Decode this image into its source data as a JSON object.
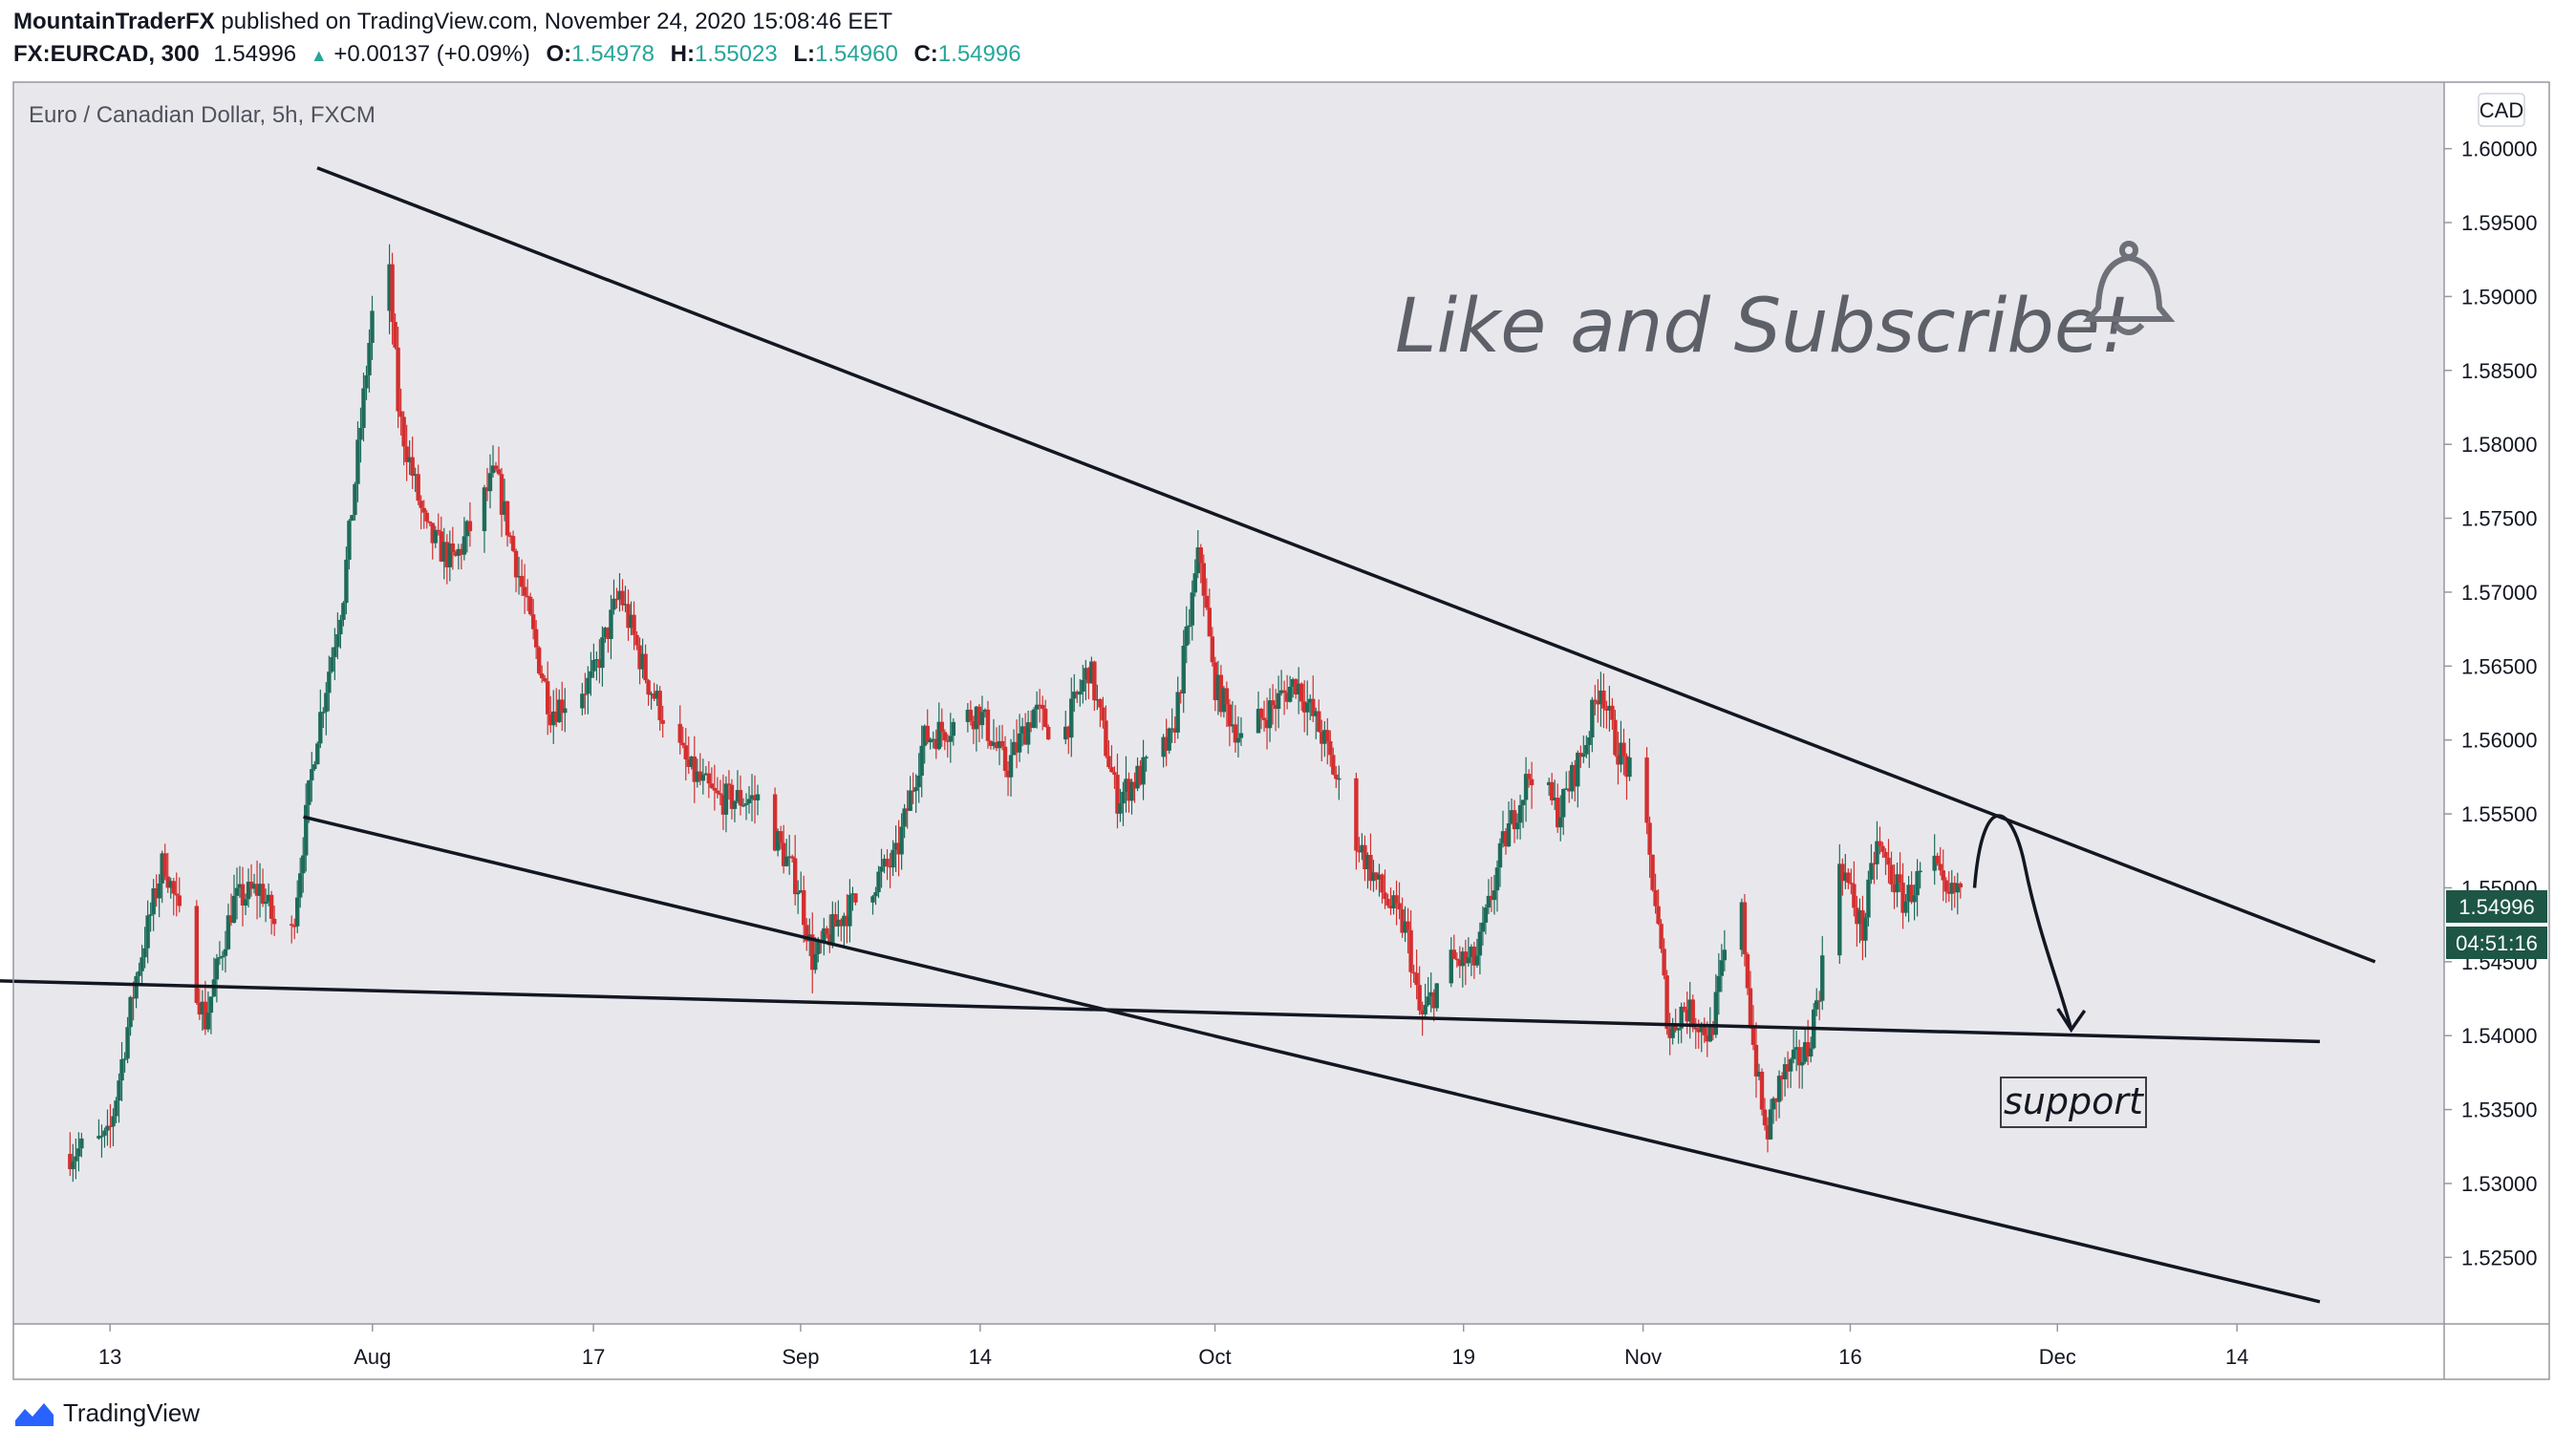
{
  "header": {
    "publisher": "MountainTraderFX",
    "published_text": "published on TradingView.com, November 24, 2020 15:08:46 EET",
    "symbol": "FX:EURCAD, 300",
    "last": "1.54996",
    "change_arrow": "▲",
    "change": "+0.00137 (+0.09%)",
    "ohlc": [
      {
        "label": "O:",
        "value": "1.54978"
      },
      {
        "label": "H:",
        "value": "1.55023"
      },
      {
        "label": "L:",
        "value": "1.54960"
      },
      {
        "label": "C:",
        "value": "1.54996"
      }
    ]
  },
  "chart_data": {
    "type": "candlestick",
    "title": "Euro / Canadian Dollar, 5h, FXCM",
    "currency": "CAD",
    "ylim": [
      1.5205,
      1.6045
    ],
    "y_ticks": [
      "1.52500",
      "1.53000",
      "1.53500",
      "1.54000",
      "1.54500",
      "1.55000",
      "1.55500",
      "1.56000",
      "1.56500",
      "1.57000",
      "1.57500",
      "1.58000",
      "1.58500",
      "1.59000",
      "1.59500",
      "1.60000"
    ],
    "x_ticks": [
      "13",
      "Aug",
      "17",
      "Sep",
      "14",
      "Oct",
      "19",
      "Nov",
      "16",
      "Dec",
      "14"
    ],
    "x_tick_dates": [
      "2020-07-13",
      "2020-08-01",
      "2020-08-17",
      "2020-09-01",
      "2020-09-14",
      "2020-10-01",
      "2020-10-19",
      "2020-11-01",
      "2020-11-16",
      "2020-12-01",
      "2020-12-14"
    ],
    "price_path": [
      [
        "2020-07-10",
        1.532
      ],
      [
        "2020-07-13",
        1.533
      ],
      [
        "2020-07-15",
        1.544
      ],
      [
        "2020-07-17",
        1.552
      ],
      [
        "2020-07-20",
        1.541
      ],
      [
        "2020-07-22",
        1.549
      ],
      [
        "2020-07-24",
        1.55
      ],
      [
        "2020-07-26",
        1.545
      ],
      [
        "2020-07-28",
        1.56
      ],
      [
        "2020-07-30",
        1.57
      ],
      [
        "2020-08-01",
        1.588
      ],
      [
        "2020-08-02",
        1.596
      ],
      [
        "2020-08-03",
        1.582
      ],
      [
        "2020-08-05",
        1.574
      ],
      [
        "2020-08-07",
        1.572
      ],
      [
        "2020-08-10",
        1.578
      ],
      [
        "2020-08-12",
        1.57
      ],
      [
        "2020-08-14",
        1.562
      ],
      [
        "2020-08-17",
        1.564
      ],
      [
        "2020-08-19",
        1.57
      ],
      [
        "2020-08-21",
        1.564
      ],
      [
        "2020-08-24",
        1.558
      ],
      [
        "2020-08-26",
        1.556
      ],
      [
        "2020-08-29",
        1.556
      ],
      [
        "2020-09-01",
        1.55
      ],
      [
        "2020-09-02",
        1.545
      ],
      [
        "2020-09-04",
        1.548
      ],
      [
        "2020-09-06",
        1.55
      ],
      [
        "2020-09-08",
        1.552
      ],
      [
        "2020-09-10",
        1.56
      ],
      [
        "2020-09-12",
        1.561
      ],
      [
        "2020-09-14",
        1.562
      ],
      [
        "2020-09-16",
        1.558
      ],
      [
        "2020-09-18",
        1.562
      ],
      [
        "2020-09-20",
        1.56
      ],
      [
        "2020-09-22",
        1.565
      ],
      [
        "2020-09-24",
        1.556
      ],
      [
        "2020-09-26",
        1.558
      ],
      [
        "2020-09-28",
        1.56
      ],
      [
        "2020-09-30",
        1.573
      ],
      [
        "2020-10-01",
        1.564
      ],
      [
        "2020-10-03",
        1.56
      ],
      [
        "2020-10-05",
        1.562
      ],
      [
        "2020-10-07",
        1.564
      ],
      [
        "2020-10-09",
        1.56
      ],
      [
        "2020-10-11",
        1.554
      ],
      [
        "2020-10-13",
        1.55
      ],
      [
        "2020-10-15",
        1.547
      ],
      [
        "2020-10-16",
        1.541
      ],
      [
        "2020-10-18",
        1.545
      ],
      [
        "2020-10-20",
        1.545
      ],
      [
        "2020-10-22",
        1.553
      ],
      [
        "2020-10-24",
        1.558
      ],
      [
        "2020-10-26",
        1.555
      ],
      [
        "2020-10-28",
        1.56
      ],
      [
        "2020-10-29",
        1.564
      ],
      [
        "2020-10-30",
        1.56
      ],
      [
        "2020-11-01",
        1.556
      ],
      [
        "2020-11-02",
        1.549
      ],
      [
        "2020-11-03",
        1.54
      ],
      [
        "2020-11-04",
        1.542
      ],
      [
        "2020-11-06",
        1.54
      ],
      [
        "2020-11-08",
        1.551
      ],
      [
        "2020-11-09",
        1.54
      ],
      [
        "2020-11-10",
        1.533
      ],
      [
        "2020-11-11",
        1.537
      ],
      [
        "2020-11-13",
        1.539
      ],
      [
        "2020-11-14",
        1.544
      ],
      [
        "2020-11-15",
        1.553
      ],
      [
        "2020-11-17",
        1.547
      ],
      [
        "2020-11-18",
        1.553
      ],
      [
        "2020-11-20",
        1.549
      ],
      [
        "2020-11-22",
        1.552
      ],
      [
        "2020-11-23",
        1.549
      ],
      [
        "2020-11-24",
        1.55
      ]
    ],
    "last_price": "1.54996",
    "countdown": "04:51:16",
    "annotations": {
      "headline": "Like and Subscribe!",
      "support_label": "support"
    },
    "trendlines": [
      {
        "name": "upper-resistance",
        "from": [
          "2020-07-28",
          1.5987
        ],
        "to": [
          "2020-12-24",
          1.545
        ]
      },
      {
        "name": "lower-channel",
        "from": [
          "2020-07-27",
          1.5548
        ],
        "to": [
          "2020-12-20",
          1.522
        ]
      },
      {
        "name": "support",
        "from": [
          "2020-07-01",
          1.5438
        ],
        "to": [
          "2020-12-20",
          1.5396
        ]
      }
    ],
    "projection": {
      "from": [
        "2020-11-25",
        1.55
      ],
      "peak": [
        "2020-11-27",
        1.554
      ],
      "to": [
        "2020-12-02",
        1.5404
      ]
    },
    "colors": {
      "up": "#1e6b5a",
      "down": "#d32f2f",
      "background": "#e8e8ec",
      "line": "#131722",
      "price_label": "#1e5645"
    }
  },
  "footer": {
    "brand": "TradingView"
  }
}
